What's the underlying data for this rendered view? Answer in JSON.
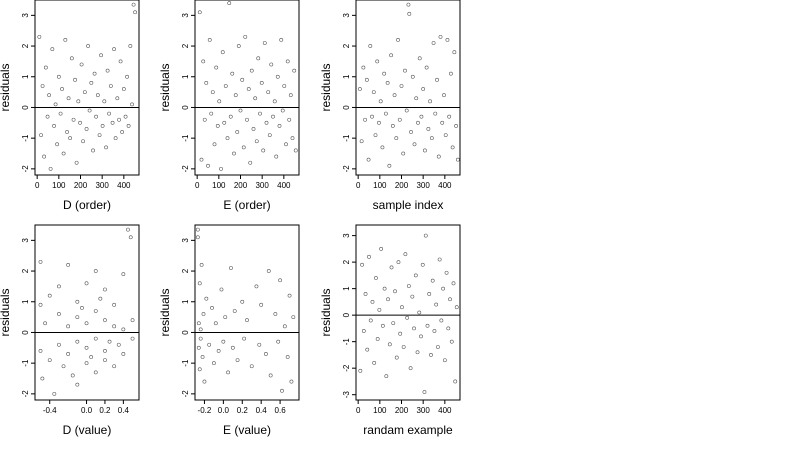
{
  "chart_data": [
    {
      "type": "scatter",
      "xlabel": "D (order)",
      "ylabel": "residuals",
      "xlim": [
        -10,
        470
      ],
      "ylim": [
        -2.2,
        3.5
      ],
      "xticks": [
        0,
        100,
        200,
        300,
        400
      ],
      "yticks": [
        -2,
        -1,
        0,
        1,
        2,
        3
      ],
      "hline": 0,
      "points": [
        [
          10,
          2.3
        ],
        [
          18,
          -0.9
        ],
        [
          25,
          0.7
        ],
        [
          32,
          -1.6
        ],
        [
          40,
          1.3
        ],
        [
          48,
          -0.3
        ],
        [
          55,
          0.4
        ],
        [
          62,
          -2.0
        ],
        [
          70,
          1.9
        ],
        [
          78,
          -0.6
        ],
        [
          85,
          0.1
        ],
        [
          92,
          -1.2
        ],
        [
          100,
          1.0
        ],
        [
          108,
          -0.2
        ],
        [
          115,
          0.6
        ],
        [
          122,
          -1.5
        ],
        [
          130,
          2.2
        ],
        [
          138,
          -0.8
        ],
        [
          145,
          0.3
        ],
        [
          152,
          -1.0
        ],
        [
          160,
          1.6
        ],
        [
          168,
          -0.4
        ],
        [
          175,
          0.9
        ],
        [
          182,
          -1.8
        ],
        [
          190,
          0.2
        ],
        [
          198,
          -0.5
        ],
        [
          205,
          1.4
        ],
        [
          212,
          -1.1
        ],
        [
          220,
          0.5
        ],
        [
          228,
          -0.7
        ],
        [
          235,
          2.0
        ],
        [
          242,
          -0.1
        ],
        [
          250,
          0.8
        ],
        [
          258,
          -1.4
        ],
        [
          265,
          1.1
        ],
        [
          272,
          -0.3
        ],
        [
          280,
          0.4
        ],
        [
          288,
          -0.9
        ],
        [
          295,
          1.7
        ],
        [
          302,
          -0.6
        ],
        [
          310,
          0.2
        ],
        [
          318,
          -1.3
        ],
        [
          325,
          1.2
        ],
        [
          332,
          -0.2
        ],
        [
          340,
          0.7
        ],
        [
          348,
          -0.5
        ],
        [
          355,
          1.9
        ],
        [
          362,
          -1.0
        ],
        [
          370,
          0.3
        ],
        [
          378,
          -0.4
        ],
        [
          385,
          1.5
        ],
        [
          392,
          -0.8
        ],
        [
          400,
          0.6
        ],
        [
          408,
          -0.3
        ],
        [
          415,
          1.0
        ],
        [
          422,
          -0.6
        ],
        [
          430,
          2.0
        ],
        [
          438,
          0.1
        ],
        [
          445,
          3.35
        ],
        [
          452,
          3.1
        ]
      ]
    },
    {
      "type": "scatter",
      "xlabel": "E (order)",
      "ylabel": "residuals",
      "xlim": [
        -10,
        470
      ],
      "ylim": [
        -2.2,
        3.5
      ],
      "xticks": [
        0,
        100,
        200,
        300,
        400
      ],
      "yticks": [
        -2,
        -1,
        0,
        1,
        2,
        3
      ],
      "hline": 0,
      "points": [
        [
          12,
          3.1
        ],
        [
          20,
          -1.7
        ],
        [
          28,
          1.5
        ],
        [
          35,
          -0.4
        ],
        [
          42,
          0.8
        ],
        [
          50,
          -1.9
        ],
        [
          58,
          2.2
        ],
        [
          65,
          -0.2
        ],
        [
          72,
          0.5
        ],
        [
          80,
          -1.2
        ],
        [
          88,
          1.3
        ],
        [
          95,
          -0.6
        ],
        [
          102,
          0.2
        ],
        [
          110,
          -2.0
        ],
        [
          118,
          1.8
        ],
        [
          125,
          -0.5
        ],
        [
          132,
          0.7
        ],
        [
          140,
          -1.0
        ],
        [
          148,
          3.4
        ],
        [
          155,
          -0.3
        ],
        [
          162,
          1.1
        ],
        [
          170,
          -1.5
        ],
        [
          178,
          0.4
        ],
        [
          185,
          -0.8
        ],
        [
          192,
          2.0
        ],
        [
          200,
          -0.1
        ],
        [
          208,
          0.9
        ],
        [
          215,
          -1.3
        ],
        [
          222,
          2.3
        ],
        [
          230,
          -0.4
        ],
        [
          238,
          0.6
        ],
        [
          245,
          -1.8
        ],
        [
          252,
          1.2
        ],
        [
          260,
          -0.7
        ],
        [
          268,
          0.3
        ],
        [
          275,
          -1.1
        ],
        [
          282,
          1.6
        ],
        [
          290,
          -0.2
        ],
        [
          298,
          0.8
        ],
        [
          305,
          -1.4
        ],
        [
          312,
          2.1
        ],
        [
          320,
          -0.5
        ],
        [
          328,
          0.5
        ],
        [
          335,
          -0.9
        ],
        [
          342,
          1.4
        ],
        [
          350,
          -0.3
        ],
        [
          358,
          0.2
        ],
        [
          365,
          -1.6
        ],
        [
          372,
          1.0
        ],
        [
          380,
          -0.6
        ],
        [
          388,
          2.2
        ],
        [
          395,
          -0.1
        ],
        [
          402,
          0.7
        ],
        [
          410,
          -1.2
        ],
        [
          418,
          1.5
        ],
        [
          425,
          -0.4
        ],
        [
          432,
          0.4
        ],
        [
          440,
          -1.0
        ],
        [
          448,
          1.2
        ],
        [
          455,
          -1.4
        ]
      ]
    },
    {
      "type": "scatter",
      "xlabel": "sample index",
      "ylabel": "residuals",
      "xlim": [
        -10,
        470
      ],
      "ylim": [
        -2.2,
        3.5
      ],
      "xticks": [
        0,
        100,
        200,
        300,
        400
      ],
      "yticks": [
        -2,
        -1,
        0,
        1,
        2,
        3
      ],
      "hline": 0,
      "points": [
        [
          8,
          0.6
        ],
        [
          16,
          -1.1
        ],
        [
          24,
          1.3
        ],
        [
          32,
          -0.4
        ],
        [
          40,
          0.9
        ],
        [
          48,
          -1.7
        ],
        [
          56,
          2.0
        ],
        [
          64,
          -0.3
        ],
        [
          72,
          0.5
        ],
        [
          80,
          -0.9
        ],
        [
          88,
          1.5
        ],
        [
          96,
          -0.5
        ],
        [
          104,
          0.2
        ],
        [
          112,
          -1.3
        ],
        [
          120,
          1.1
        ],
        [
          128,
          -0.2
        ],
        [
          136,
          0.8
        ],
        [
          144,
          -1.9
        ],
        [
          152,
          1.7
        ],
        [
          160,
          -0.6
        ],
        [
          168,
          0.4
        ],
        [
          176,
          -1.0
        ],
        [
          184,
          2.2
        ],
        [
          192,
          -0.4
        ],
        [
          200,
          0.7
        ],
        [
          208,
          -1.5
        ],
        [
          216,
          1.2
        ],
        [
          224,
          -0.1
        ],
        [
          232,
          3.35
        ],
        [
          236,
          3.05
        ],
        [
          244,
          -0.8
        ],
        [
          252,
          1.0
        ],
        [
          260,
          -1.2
        ],
        [
          268,
          0.3
        ],
        [
          276,
          -0.5
        ],
        [
          284,
          1.6
        ],
        [
          292,
          -0.3
        ],
        [
          300,
          0.6
        ],
        [
          308,
          -1.4
        ],
        [
          316,
          1.3
        ],
        [
          324,
          -0.7
        ],
        [
          332,
          0.2
        ],
        [
          340,
          -1.0
        ],
        [
          348,
          2.1
        ],
        [
          356,
          -0.2
        ],
        [
          364,
          0.9
        ],
        [
          372,
          -1.6
        ],
        [
          380,
          2.3
        ],
        [
          388,
          -0.5
        ],
        [
          396,
          0.4
        ],
        [
          404,
          -0.9
        ],
        [
          412,
          2.2
        ],
        [
          420,
          -0.3
        ],
        [
          428,
          1.1
        ],
        [
          436,
          -1.3
        ],
        [
          444,
          1.8
        ],
        [
          452,
          -0.6
        ],
        [
          460,
          -1.7
        ]
      ]
    },
    {
      "type": "scatter",
      "xlabel": "D (value)",
      "ylabel": "residuals",
      "xlim": [
        -0.56,
        0.57
      ],
      "ylim": [
        -2.2,
        3.5
      ],
      "xticks": [
        -0.4,
        0.0,
        0.2,
        0.4
      ],
      "xtick_labels": [
        "-0.4",
        "0.0",
        "0.2",
        "0.4"
      ],
      "yticks": [
        -2,
        -1,
        0,
        1,
        2,
        3
      ],
      "hline": 0,
      "points": [
        [
          -0.5,
          2.3
        ],
        [
          -0.5,
          0.9
        ],
        [
          -0.5,
          -0.6
        ],
        [
          -0.48,
          -1.5
        ],
        [
          -0.45,
          0.3
        ],
        [
          -0.4,
          -0.9
        ],
        [
          -0.4,
          1.2
        ],
        [
          -0.35,
          -2.0
        ],
        [
          -0.3,
          0.6
        ],
        [
          -0.3,
          -0.4
        ],
        [
          -0.3,
          1.5
        ],
        [
          -0.25,
          -1.1
        ],
        [
          -0.2,
          0.2
        ],
        [
          -0.2,
          -0.7
        ],
        [
          -0.2,
          2.2
        ],
        [
          -0.15,
          -1.4
        ],
        [
          -0.1,
          0.5
        ],
        [
          -0.1,
          -0.3
        ],
        [
          -0.1,
          1.0
        ],
        [
          -0.1,
          -1.7
        ],
        [
          -0.05,
          0.8
        ],
        [
          0.0,
          -0.5
        ],
        [
          0.0,
          1.6
        ],
        [
          0.0,
          -1.0
        ],
        [
          0.0,
          0.3
        ],
        [
          0.05,
          -0.8
        ],
        [
          0.1,
          2.0
        ],
        [
          0.1,
          -0.2
        ],
        [
          0.1,
          0.7
        ],
        [
          0.1,
          -1.3
        ],
        [
          0.15,
          1.1
        ],
        [
          0.2,
          -0.6
        ],
        [
          0.2,
          0.4
        ],
        [
          0.2,
          -0.9
        ],
        [
          0.2,
          1.4
        ],
        [
          0.25,
          -0.3
        ],
        [
          0.3,
          0.2
        ],
        [
          0.3,
          -1.1
        ],
        [
          0.3,
          0.9
        ],
        [
          0.35,
          -0.4
        ],
        [
          0.4,
          0.1
        ],
        [
          0.4,
          1.9
        ],
        [
          0.4,
          -0.7
        ],
        [
          0.45,
          3.35
        ],
        [
          0.48,
          3.1
        ],
        [
          0.5,
          0.4
        ],
        [
          0.5,
          -0.2
        ]
      ]
    },
    {
      "type": "scatter",
      "xlabel": "E (value)",
      "ylabel": "residuals",
      "xlim": [
        -0.3,
        0.8
      ],
      "ylim": [
        -2.2,
        3.5
      ],
      "xticks": [
        -0.2,
        0.0,
        0.2,
        0.4,
        0.6
      ],
      "xtick_labels": [
        "-0.2",
        "0.0",
        "0.2",
        "0.4",
        "0.6"
      ],
      "yticks": [
        -2,
        -1,
        0,
        1,
        2,
        3
      ],
      "hline": 0,
      "points": [
        [
          -0.27,
          3.35
        ],
        [
          -0.27,
          3.1
        ],
        [
          -0.26,
          0.3
        ],
        [
          -0.26,
          -0.5
        ],
        [
          -0.25,
          1.6
        ],
        [
          -0.25,
          -1.2
        ],
        [
          -0.24,
          0.1
        ],
        [
          -0.24,
          -0.2
        ],
        [
          -0.23,
          2.2
        ],
        [
          -0.22,
          -0.8
        ],
        [
          -0.21,
          0.6
        ],
        [
          -0.2,
          -1.6
        ],
        [
          -0.18,
          1.1
        ],
        [
          -0.15,
          -0.4
        ],
        [
          -0.12,
          0.8
        ],
        [
          -0.1,
          -1.0
        ],
        [
          -0.08,
          0.3
        ],
        [
          -0.05,
          -0.6
        ],
        [
          -0.02,
          1.4
        ],
        [
          0.0,
          -0.3
        ],
        [
          0.02,
          0.5
        ],
        [
          0.05,
          -1.3
        ],
        [
          0.08,
          2.1
        ],
        [
          0.1,
          -0.5
        ],
        [
          0.12,
          0.7
        ],
        [
          0.15,
          -0.9
        ],
        [
          0.2,
          1.0
        ],
        [
          0.22,
          -0.2
        ],
        [
          0.25,
          0.4
        ],
        [
          0.3,
          -1.1
        ],
        [
          0.35,
          1.5
        ],
        [
          0.38,
          -0.4
        ],
        [
          0.4,
          0.9
        ],
        [
          0.45,
          -0.7
        ],
        [
          0.48,
          2.0
        ],
        [
          0.5,
          -1.4
        ],
        [
          0.55,
          0.6
        ],
        [
          0.58,
          -0.3
        ],
        [
          0.6,
          1.7
        ],
        [
          0.62,
          -1.9
        ],
        [
          0.65,
          0.2
        ],
        [
          0.68,
          -0.8
        ],
        [
          0.7,
          1.2
        ],
        [
          0.72,
          -1.6
        ],
        [
          0.74,
          0.5
        ]
      ]
    },
    {
      "type": "scatter",
      "xlabel": "randam example",
      "ylabel": "residuals",
      "xlim": [
        -10,
        470
      ],
      "ylim": [
        -3.2,
        3.4
      ],
      "xticks": [
        0,
        100,
        200,
        300,
        400
      ],
      "yticks": [
        -3,
        -2,
        -1,
        0,
        1,
        2,
        3
      ],
      "hline": 0,
      "points": [
        [
          10,
          -2.1
        ],
        [
          18,
          1.9
        ],
        [
          26,
          -0.6
        ],
        [
          34,
          0.8
        ],
        [
          42,
          -1.3
        ],
        [
          50,
          2.2
        ],
        [
          58,
          -0.2
        ],
        [
          66,
          0.5
        ],
        [
          74,
          -1.8
        ],
        [
          82,
          1.4
        ],
        [
          90,
          -0.9
        ],
        [
          98,
          0.2
        ],
        [
          106,
          2.5
        ],
        [
          114,
          -0.4
        ],
        [
          122,
          1.0
        ],
        [
          130,
          -2.3
        ],
        [
          138,
          0.6
        ],
        [
          146,
          -1.1
        ],
        [
          154,
          1.8
        ],
        [
          162,
          -0.3
        ],
        [
          170,
          0.9
        ],
        [
          178,
          -1.6
        ],
        [
          186,
          2.0
        ],
        [
          194,
          -0.7
        ],
        [
          202,
          0.3
        ],
        [
          210,
          -1.2
        ],
        [
          218,
          2.3
        ],
        [
          226,
          -0.1
        ],
        [
          234,
          1.1
        ],
        [
          242,
          -2.0
        ],
        [
          250,
          0.7
        ],
        [
          258,
          -0.5
        ],
        [
          266,
          1.5
        ],
        [
          274,
          -1.4
        ],
        [
          282,
          0.1
        ],
        [
          290,
          -0.8
        ],
        [
          298,
          1.9
        ],
        [
          306,
          -2.9
        ],
        [
          312,
          3.0
        ],
        [
          320,
          -0.4
        ],
        [
          328,
          0.8
        ],
        [
          336,
          -1.5
        ],
        [
          344,
          1.3
        ],
        [
          352,
          -0.6
        ],
        [
          360,
          0.4
        ],
        [
          368,
          -1.2
        ],
        [
          376,
          2.1
        ],
        [
          384,
          -0.2
        ],
        [
          392,
          1.0
        ],
        [
          400,
          -1.7
        ],
        [
          408,
          1.6
        ],
        [
          416,
          -0.5
        ],
        [
          424,
          0.6
        ],
        [
          432,
          -1.0
        ],
        [
          440,
          1.2
        ],
        [
          448,
          -2.5
        ],
        [
          455,
          0.3
        ]
      ]
    }
  ]
}
